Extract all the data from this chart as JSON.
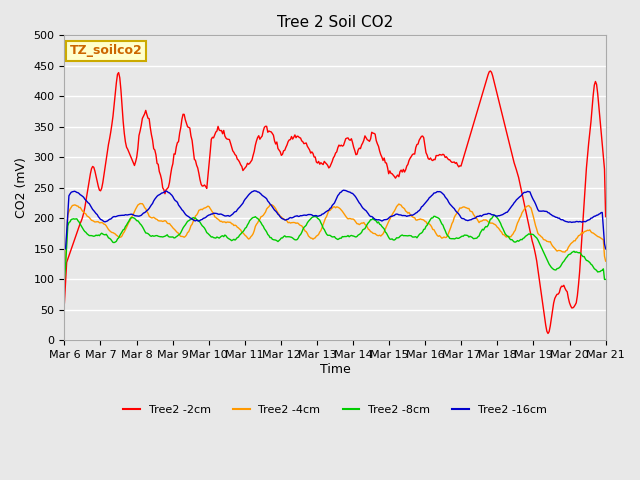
{
  "title": "Tree 2 Soil CO2",
  "xlabel": "Time",
  "ylabel": "CO2 (mV)",
  "ylim": [
    0,
    500
  ],
  "background_color": "#e8e8e8",
  "label_box_text": "TZ_soilco2",
  "label_box_bg": "#ffffcc",
  "label_box_edge": "#ccaa00",
  "series": {
    "Tree2 -2cm": {
      "color": "#ff0000"
    },
    "Tree2 -4cm": {
      "color": "#ff9900"
    },
    "Tree2 -8cm": {
      "color": "#00cc00"
    },
    "Tree2 -16cm": {
      "color": "#0000cc"
    }
  },
  "tick_labels": [
    "Mar 6",
    "Mar 7",
    "Mar 8",
    "Mar 9",
    "Mar 10",
    "Mar 11",
    "Mar 12",
    "Mar 13",
    "Mar 14",
    "Mar 15",
    "Mar 16",
    "Mar 17",
    "Mar 18",
    "Mar 19",
    "Mar 20",
    "Mar 21"
  ],
  "yticks": [
    0,
    50,
    100,
    150,
    200,
    250,
    300,
    350,
    400,
    450,
    500
  ]
}
